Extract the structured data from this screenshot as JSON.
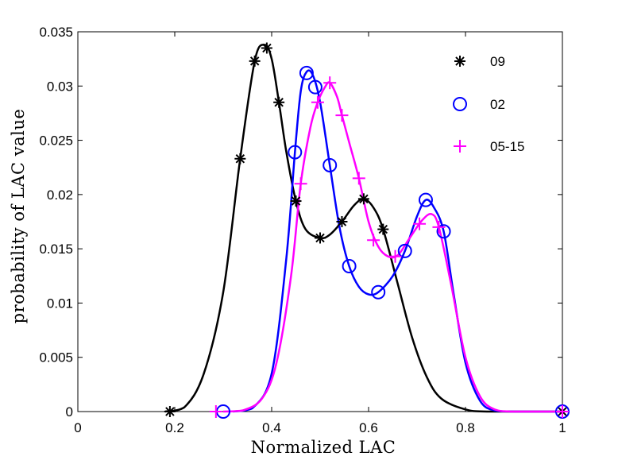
{
  "chart_data": {
    "type": "line",
    "title": "",
    "xlabel": "Normalized LAC",
    "ylabel": "probability of LAC value",
    "xlim": [
      0,
      1
    ],
    "ylim": [
      0,
      0.035
    ],
    "xticks": [
      "0",
      "0.2",
      "0.4",
      "0.6",
      "0.8",
      "1"
    ],
    "xtick_values": [
      0,
      0.2,
      0.4,
      0.6,
      0.8,
      1
    ],
    "yticks": [
      "0",
      "0.005",
      "0.01",
      "0.015",
      "0.02",
      "0.025",
      "0.03",
      "0.035"
    ],
    "ytick_values": [
      0,
      0.005,
      0.01,
      0.015,
      0.02,
      0.025,
      0.03,
      0.035
    ],
    "grid": false,
    "legend_position": "top-right",
    "series": [
      {
        "name": "09",
        "color": "#000000",
        "marker": "asterisk",
        "points": [
          [
            0.19,
            0
          ],
          [
            0.335,
            0.0233
          ],
          [
            0.365,
            0.0323
          ],
          [
            0.39,
            0.0335
          ],
          [
            0.415,
            0.0285
          ],
          [
            0.45,
            0.0194
          ],
          [
            0.5,
            0.016
          ],
          [
            0.545,
            0.0175
          ],
          [
            0.59,
            0.0196
          ],
          [
            0.63,
            0.0168
          ],
          [
            1.0,
            0
          ]
        ],
        "curve": [
          [
            0.18,
            0
          ],
          [
            0.22,
            0.0004
          ],
          [
            0.26,
            0.0035
          ],
          [
            0.3,
            0.011
          ],
          [
            0.335,
            0.0233
          ],
          [
            0.365,
            0.0323
          ],
          [
            0.385,
            0.0338
          ],
          [
            0.4,
            0.0325
          ],
          [
            0.415,
            0.0285
          ],
          [
            0.43,
            0.024
          ],
          [
            0.45,
            0.0194
          ],
          [
            0.47,
            0.0168
          ],
          [
            0.5,
            0.016
          ],
          [
            0.52,
            0.0163
          ],
          [
            0.545,
            0.0175
          ],
          [
            0.57,
            0.019
          ],
          [
            0.59,
            0.0196
          ],
          [
            0.61,
            0.0188
          ],
          [
            0.63,
            0.0168
          ],
          [
            0.66,
            0.0118
          ],
          [
            0.69,
            0.0068
          ],
          [
            0.72,
            0.0032
          ],
          [
            0.75,
            0.0012
          ],
          [
            0.8,
            0.0002
          ],
          [
            0.85,
            0
          ],
          [
            1.0,
            0
          ]
        ]
      },
      {
        "name": "02",
        "color": "#0000ff",
        "marker": "circle",
        "points": [
          [
            0.3,
            0
          ],
          [
            0.448,
            0.0239
          ],
          [
            0.472,
            0.0312
          ],
          [
            0.49,
            0.0299
          ],
          [
            0.52,
            0.0227
          ],
          [
            0.56,
            0.0134
          ],
          [
            0.62,
            0.011
          ],
          [
            0.675,
            0.0148
          ],
          [
            0.718,
            0.0195
          ],
          [
            0.755,
            0.0166
          ],
          [
            1.0,
            0
          ]
        ],
        "curve": [
          [
            0.32,
            0
          ],
          [
            0.36,
            0.0003
          ],
          [
            0.4,
            0.0035
          ],
          [
            0.43,
            0.014
          ],
          [
            0.448,
            0.0239
          ],
          [
            0.46,
            0.0295
          ],
          [
            0.472,
            0.0313
          ],
          [
            0.485,
            0.031
          ],
          [
            0.5,
            0.0285
          ],
          [
            0.52,
            0.0227
          ],
          [
            0.54,
            0.017
          ],
          [
            0.56,
            0.0134
          ],
          [
            0.58,
            0.0115
          ],
          [
            0.6,
            0.0108
          ],
          [
            0.62,
            0.011
          ],
          [
            0.65,
            0.0125
          ],
          [
            0.675,
            0.0148
          ],
          [
            0.7,
            0.018
          ],
          [
            0.718,
            0.0195
          ],
          [
            0.735,
            0.0188
          ],
          [
            0.755,
            0.0166
          ],
          [
            0.775,
            0.011
          ],
          [
            0.8,
            0.0045
          ],
          [
            0.83,
            0.001
          ],
          [
            0.86,
            0.0001
          ],
          [
            0.9,
            0
          ],
          [
            1.0,
            0
          ]
        ]
      },
      {
        "name": "05-15",
        "color": "#ff00ff",
        "marker": "plus",
        "points": [
          [
            0.285,
            0
          ],
          [
            0.46,
            0.021
          ],
          [
            0.495,
            0.0285
          ],
          [
            0.52,
            0.0303
          ],
          [
            0.545,
            0.0273
          ],
          [
            0.58,
            0.0215
          ],
          [
            0.61,
            0.0158
          ],
          [
            0.655,
            0.0143
          ],
          [
            0.705,
            0.0173
          ],
          [
            0.745,
            0.017
          ],
          [
            1.0,
            0
          ]
        ],
        "curve": [
          [
            0.3,
            0
          ],
          [
            0.34,
            0.0001
          ],
          [
            0.38,
            0.0012
          ],
          [
            0.41,
            0.0045
          ],
          [
            0.44,
            0.0125
          ],
          [
            0.46,
            0.021
          ],
          [
            0.48,
            0.0262
          ],
          [
            0.495,
            0.0285
          ],
          [
            0.51,
            0.0299
          ],
          [
            0.52,
            0.0303
          ],
          [
            0.535,
            0.029
          ],
          [
            0.545,
            0.0273
          ],
          [
            0.56,
            0.0248
          ],
          [
            0.58,
            0.0215
          ],
          [
            0.6,
            0.0175
          ],
          [
            0.62,
            0.0152
          ],
          [
            0.64,
            0.0143
          ],
          [
            0.66,
            0.0144
          ],
          [
            0.685,
            0.016
          ],
          [
            0.71,
            0.0176
          ],
          [
            0.73,
            0.0182
          ],
          [
            0.745,
            0.017
          ],
          [
            0.77,
            0.0118
          ],
          [
            0.8,
            0.005
          ],
          [
            0.83,
            0.0014
          ],
          [
            0.86,
            0.0002
          ],
          [
            0.9,
            0
          ],
          [
            1.0,
            0
          ]
        ]
      }
    ]
  }
}
